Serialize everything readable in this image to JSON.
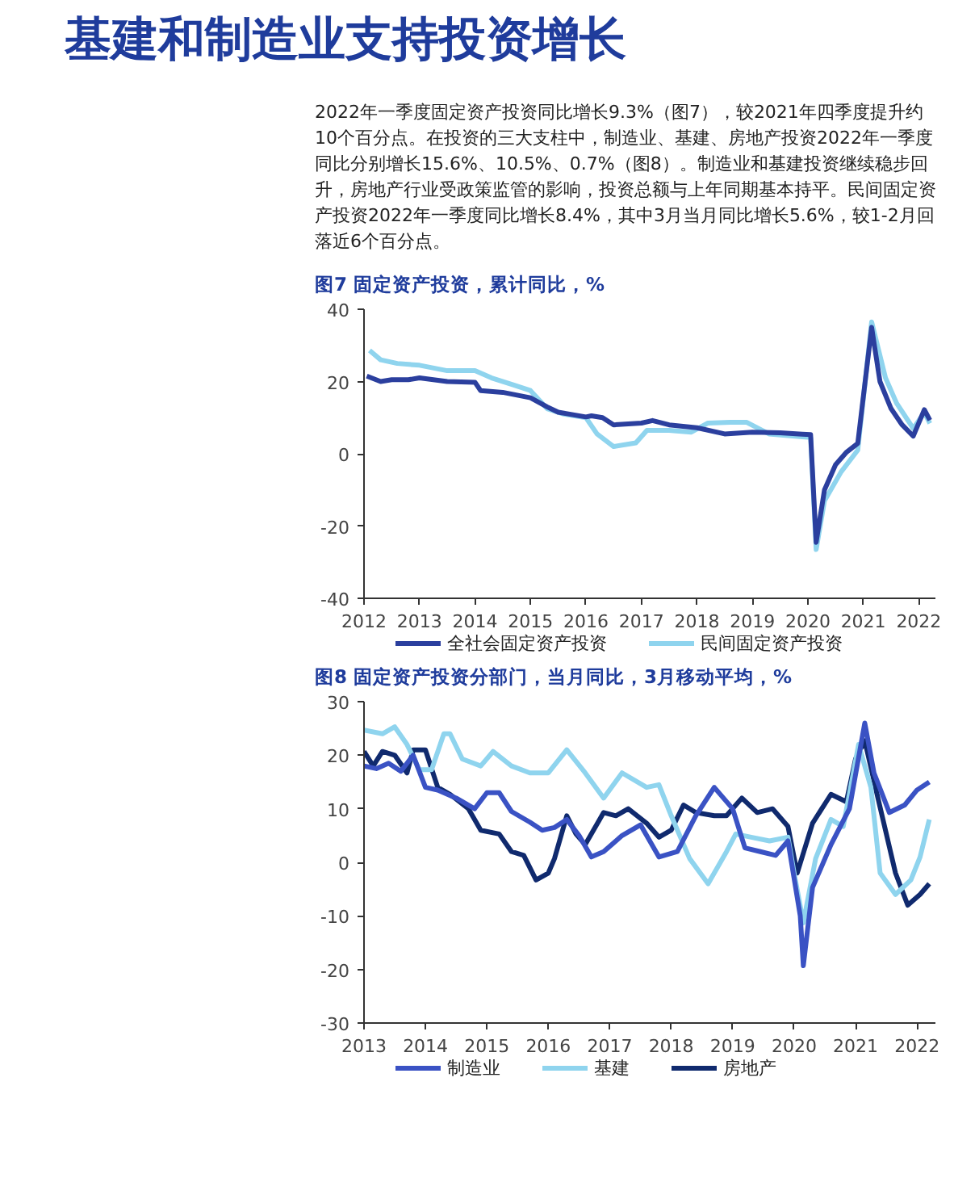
{
  "chart_data": [
    {
      "type": "line",
      "title": "基建和制造业支持投资增长",
      "annotations": [
        "2022年一季度固定资产投资同比增长9.3%（图7），较2021年四季度提升约10个百分点。在投资的三大支柱中，制造业、基建、房地产投资2022年一季度同比分别增长15.6%、10.5%、0.7%（图8）。制造业和基建投资继续稳步回升，房地产行业受政策监管的影响，投资总额与上年同期基本持平。民间固定资产投资2022年一季度同比增长8.4%，其中3月当月同比增长5.6%，较1-2月回落近6个百分点。"
      ],
      "subtitle": "图7 固定资产投资，累计同比，%",
      "xlim": [
        2012,
        2022.3
      ],
      "xticks": [
        2012,
        2013,
        2014,
        2015,
        2016,
        2017,
        2018,
        2019,
        2020,
        2021,
        2022
      ],
      "ylim": [
        -40,
        40
      ],
      "yticks": [
        -40,
        -20,
        0,
        20,
        40
      ],
      "legend": "bottom",
      "line_style": "solid",
      "series": [
        {
          "name": "全社会固定资产投资",
          "color": "#2b3f9e",
          "x": [
            2012.05,
            2012.3,
            2012.5,
            2012.8,
            2013.0,
            2013.5,
            2014.0,
            2014.1,
            2014.5,
            2015.0,
            2015.3,
            2015.5,
            2016.0,
            2016.1,
            2016.3,
            2016.5,
            2017.0,
            2017.2,
            2017.5,
            2018.0,
            2018.5,
            2019.0,
            2019.5,
            2019.9,
            2020.05,
            2020.15,
            2020.3,
            2020.5,
            2020.7,
            2020.9,
            2021.15,
            2021.3,
            2021.5,
            2021.7,
            2021.9,
            2022.1,
            2022.2
          ],
          "values": [
            21.5,
            20,
            20.5,
            20.5,
            21,
            20,
            19.8,
            17.5,
            17,
            15.5,
            13,
            11.5,
            10.2,
            10.5,
            10,
            8,
            8.5,
            9.2,
            8,
            7.2,
            5.5,
            6,
            5.8,
            5.4,
            5.3,
            -24.5,
            -10,
            -3,
            0.5,
            2.9,
            35,
            20,
            12.5,
            8,
            4.9,
            12.2,
            9.3
          ]
        },
        {
          "name": "民间固定资产投资",
          "color": "#8fd4ee",
          "x": [
            2012.1,
            2012.3,
            2012.6,
            2013.0,
            2013.5,
            2014.0,
            2014.3,
            2014.7,
            2015.0,
            2015.3,
            2015.6,
            2016.0,
            2016.2,
            2016.5,
            2016.9,
            2017.1,
            2017.5,
            2017.9,
            2018.2,
            2018.6,
            2018.9,
            2019.3,
            2019.9,
            2020.05,
            2020.15,
            2020.3,
            2020.6,
            2020.9,
            2021.15,
            2021.4,
            2021.6,
            2021.9,
            2022.1,
            2022.2
          ],
          "values": [
            28.6,
            26,
            25,
            24.5,
            23,
            23,
            21,
            19,
            17.5,
            12.5,
            11,
            10,
            5.5,
            2,
            3,
            6.5,
            6.5,
            6,
            8.5,
            8.7,
            8.7,
            5.5,
            4.7,
            4.5,
            -26.5,
            -13,
            -5,
            1,
            36.5,
            21,
            14,
            7,
            11.4,
            8.4
          ]
        }
      ]
    },
    {
      "type": "line",
      "subtitle": "图8 固定资产投资分部门，当月同比，3月移动平均，%",
      "xlim": [
        2013,
        2022.3
      ],
      "xticks": [
        2013,
        2014,
        2015,
        2016,
        2017,
        2018,
        2019,
        2020,
        2021,
        2022
      ],
      "ylim": [
        -30,
        30
      ],
      "yticks": [
        -30,
        -20,
        -10,
        0,
        10,
        20,
        30
      ],
      "legend": "bottom",
      "line_style": "solid",
      "series": [
        {
          "name": "制造业",
          "color": "#3a52c4",
          "x": [
            2013.0,
            2013.2,
            2013.4,
            2013.6,
            2013.8,
            2014.0,
            2014.2,
            2014.5,
            2014.8,
            2015.0,
            2015.2,
            2015.4,
            2015.7,
            2015.9,
            2016.1,
            2016.3,
            2016.5,
            2016.7,
            2016.9,
            2017.2,
            2017.5,
            2017.8,
            2018.1,
            2018.4,
            2018.7,
            2019.0,
            2019.2,
            2019.45,
            2019.7,
            2019.9,
            2020.1,
            2020.15,
            2020.3,
            2020.6,
            2020.9,
            2021.15,
            2021.3,
            2021.55,
            2021.8,
            2022.0,
            2022.2
          ],
          "values": [
            18,
            17.5,
            18.5,
            17,
            20,
            14,
            13.5,
            12,
            10,
            13,
            13,
            9.5,
            7.5,
            6,
            6.5,
            8,
            5,
            1,
            2,
            5,
            7,
            1,
            2,
            8.7,
            14,
            10,
            2.7,
            2,
            1.3,
            4,
            -10,
            -19.3,
            -4.7,
            3.3,
            10,
            26,
            16.7,
            9.3,
            10.7,
            13.5,
            15
          ]
        },
        {
          "name": "基建",
          "color": "#8fd4ee",
          "x": [
            2013.0,
            2013.3,
            2013.5,
            2013.7,
            2013.9,
            2014.1,
            2014.3,
            2014.4,
            2014.6,
            2014.9,
            2015.1,
            2015.4,
            2015.7,
            2016.0,
            2016.3,
            2016.6,
            2016.9,
            2017.2,
            2017.6,
            2017.8,
            2018.0,
            2018.3,
            2018.6,
            2018.9,
            2019.05,
            2019.3,
            2019.6,
            2019.9,
            2020.0,
            2020.15,
            2020.35,
            2020.6,
            2020.8,
            2021.05,
            2021.25,
            2021.4,
            2021.65,
            2021.9,
            2022.05,
            2022.2
          ],
          "values": [
            24.7,
            24,
            25.3,
            22,
            17.3,
            17.3,
            24,
            24,
            19.3,
            18,
            20.7,
            18,
            16.7,
            16.7,
            21,
            16.7,
            12,
            16.7,
            14,
            14.5,
            8.7,
            0.7,
            -4,
            2,
            5.3,
            4.7,
            4,
            4.7,
            -2,
            -11.3,
            0.7,
            8,
            6.7,
            22,
            14,
            -2,
            -6,
            -3.3,
            1,
            8
          ]
        },
        {
          "name": "房地产",
          "color": "#102a6e",
          "x": [
            2013.0,
            2013.15,
            2013.3,
            2013.5,
            2013.7,
            2013.8,
            2014.0,
            2014.2,
            2014.4,
            2014.7,
            2014.9,
            2015.2,
            2015.4,
            2015.6,
            2015.8,
            2016.0,
            2016.1,
            2016.3,
            2016.45,
            2016.6,
            2016.9,
            2017.1,
            2017.3,
            2017.6,
            2017.8,
            2018.0,
            2018.2,
            2018.4,
            2018.7,
            2018.9,
            2019.15,
            2019.4,
            2019.65,
            2019.9,
            2020.05,
            2020.3,
            2020.6,
            2020.85,
            2021.0,
            2021.15,
            2021.35,
            2021.65,
            2021.85,
            2022.05,
            2022.2
          ],
          "values": [
            20.7,
            18,
            20.7,
            20,
            16.7,
            21,
            21,
            14,
            12.7,
            10,
            6,
            5.3,
            2,
            1.3,
            -3.3,
            -2,
            0.7,
            8.7,
            5.3,
            3.3,
            9.3,
            8.7,
            10,
            7.3,
            4.7,
            6,
            10.7,
            9.3,
            8.7,
            8.7,
            12,
            9.3,
            10,
            6.7,
            -2,
            7.3,
            12.7,
            11.3,
            19.3,
            22.7,
            12.7,
            -2,
            -8,
            -6,
            -4
          ]
        }
      ]
    }
  ]
}
